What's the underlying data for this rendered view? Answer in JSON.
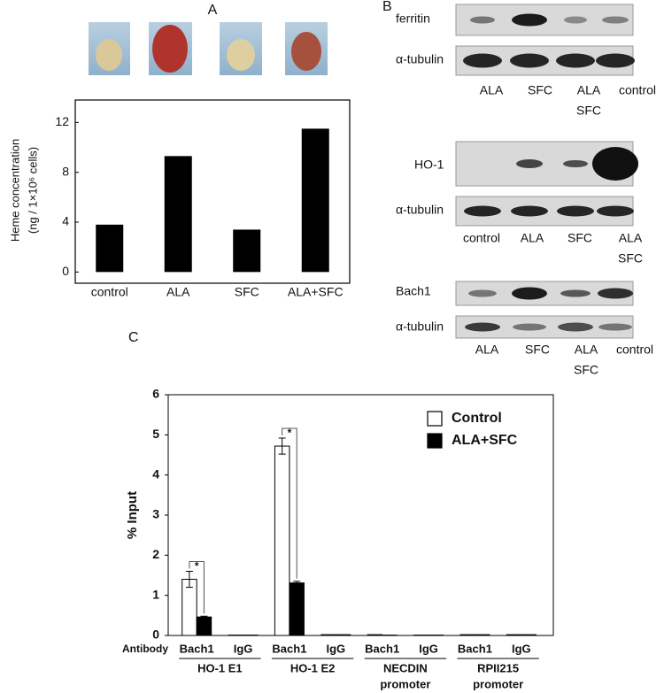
{
  "chart_data": [
    {
      "type": "bar",
      "panel_label": "A",
      "y_label": [
        "Heme concentration",
        "(ng / 1×10⁶ cells)"
      ],
      "categories": [
        "control",
        "ALA",
        "SFC",
        "ALA+SFC"
      ],
      "values": [
        3.8,
        9.3,
        3.4,
        11.5
      ],
      "color": "#000000",
      "ylim": [
        -0.9,
        13.8
      ],
      "yticks": [
        0,
        4,
        8,
        12
      ]
    },
    {
      "type": "bar",
      "panel_label": "C",
      "y_label": "% Input",
      "x_prefix": "Antibody",
      "categories": [
        "Bach1",
        "IgG",
        "Bach1",
        "IgG",
        "Bach1",
        "IgG",
        "Bach1",
        "IgG"
      ],
      "groups": [
        [
          "HO-1 E1"
        ],
        [
          "HO-1 E2"
        ],
        [
          "NECDIN",
          "promoter"
        ],
        [
          "RPII215",
          "promoter"
        ]
      ],
      "series": [
        {
          "name": "Control",
          "color": "#ffffff",
          "values": [
            1.4,
            0.01,
            4.72,
            0.02,
            0.02,
            0.01,
            0.02,
            0.02
          ],
          "errors": [
            0.2,
            null,
            0.2,
            null,
            null,
            null,
            null,
            null
          ]
        },
        {
          "name": "ALA+SFC",
          "color": "#000000",
          "values": [
            0.46,
            0.01,
            1.31,
            0.02,
            0.01,
            0.01,
            0.02,
            0.02
          ],
          "errors": [
            0.02,
            null,
            0.04,
            null,
            null,
            null,
            null,
            null
          ]
        }
      ],
      "annotations": [
        "*",
        "*"
      ],
      "ylim": [
        0,
        6
      ],
      "yticks": [
        0,
        1,
        2,
        3,
        4,
        5,
        6
      ],
      "legend": "upper right"
    }
  ],
  "blots": {
    "panel_label": "B",
    "sections": [
      {
        "rows": [
          "ferritin",
          "α-tubulin"
        ],
        "lanes": [
          [
            "ALA"
          ],
          [
            "SFC"
          ],
          [
            "ALA",
            "SFC"
          ],
          [
            "control"
          ]
        ]
      },
      {
        "rows": [
          "HO-1",
          "α-tubulin"
        ],
        "lanes": [
          [
            "control"
          ],
          [
            "ALA"
          ],
          [
            "SFC"
          ],
          [
            "ALA",
            "SFC"
          ]
        ]
      },
      {
        "rows": [
          "Bach1",
          "α-tubulin"
        ],
        "lanes": [
          [
            "ALA"
          ],
          [
            "SFC"
          ],
          [
            "ALA",
            "SFC"
          ],
          [
            "control"
          ]
        ]
      }
    ]
  }
}
